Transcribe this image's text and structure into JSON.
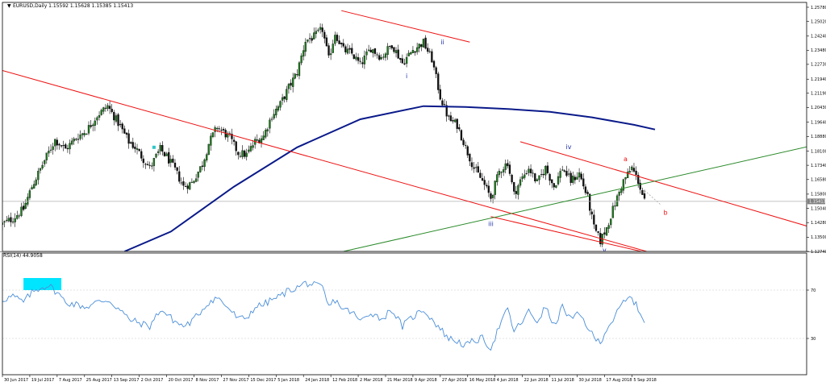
{
  "chart_data": [
    {
      "type": "candlestick",
      "title": "EURUSD,Daily  1.15592 1.15628 1.15385 1.15413",
      "symbol_marker": "▼",
      "y_ticks": [
        "1.25780",
        "1.25020",
        "1.24240",
        "1.23480",
        "1.22730",
        "1.21940",
        "1.21190",
        "1.20430",
        "1.19640",
        "1.18880",
        "1.18100",
        "1.17340",
        "1.16580",
        "1.15800",
        "1.15040",
        "1.14280",
        "1.13500",
        "1.12740"
      ],
      "ylim": [
        1.1274,
        1.2578
      ],
      "current_price": "1.15413",
      "current_price_value": 1.15413,
      "x_ticks": [
        "30 Jun 2017",
        "19 Jul 2017",
        "7 Aug 2017",
        "25 Aug 2017",
        "13 Sep 2017",
        "2 Oct 2017",
        "20 Oct 2017",
        "8 Nov 2017",
        "27 Nov 2017",
        "15 Dec 2017",
        "5 Jan 2018",
        "24 Jan 2018",
        "12 Feb 2018",
        "2 Mar 2018",
        "21 Mar 2018",
        "9 Apr 2018",
        "27 Apr 2018",
        "16 May 2018",
        "4 Jun 2018",
        "22 Jun 2018",
        "11 Jul 2018",
        "30 Jul 2018",
        "17 Aug 2018",
        "5 Sep 2018"
      ],
      "x_tick_index": [
        0,
        13,
        26,
        39,
        52,
        65,
        78,
        91,
        104,
        117,
        130,
        143,
        156,
        169,
        182,
        195,
        208,
        221,
        234,
        247,
        260,
        273,
        286,
        299
      ],
      "candle_count": 306,
      "price_path": [
        [
          0,
          1.142
        ],
        [
          5,
          1.145
        ],
        [
          10,
          1.15
        ],
        [
          14,
          1.162
        ],
        [
          20,
          1.176
        ],
        [
          25,
          1.187
        ],
        [
          30,
          1.182
        ],
        [
          35,
          1.188
        ],
        [
          40,
          1.192
        ],
        [
          45,
          1.2
        ],
        [
          50,
          1.205
        ],
        [
          55,
          1.196
        ],
        [
          60,
          1.186
        ],
        [
          63,
          1.183
        ],
        [
          70,
          1.172
        ],
        [
          75,
          1.182
        ],
        [
          78,
          1.178
        ],
        [
          82,
          1.171
        ],
        [
          86,
          1.162
        ],
        [
          90,
          1.164
        ],
        [
          95,
          1.174
        ],
        [
          98,
          1.185
        ],
        [
          102,
          1.194
        ],
        [
          108,
          1.188
        ],
        [
          112,
          1.18
        ],
        [
          116,
          1.179
        ],
        [
          120,
          1.186
        ],
        [
          124,
          1.189
        ],
        [
          128,
          1.2
        ],
        [
          132,
          1.206
        ],
        [
          136,
          1.215
        ],
        [
          140,
          1.223
        ],
        [
          144,
          1.24
        ],
        [
          148,
          1.242
        ],
        [
          152,
          1.246
        ],
        [
          155,
          1.23
        ],
        [
          158,
          1.244
        ],
        [
          162,
          1.235
        ],
        [
          166,
          1.233
        ],
        [
          170,
          1.227
        ],
        [
          175,
          1.236
        ],
        [
          180,
          1.231
        ],
        [
          185,
          1.238
        ],
        [
          190,
          1.228
        ],
        [
          195,
          1.235
        ],
        [
          200,
          1.239
        ],
        [
          204,
          1.23
        ],
        [
          208,
          1.21
        ],
        [
          212,
          1.198
        ],
        [
          216,
          1.195
        ],
        [
          220,
          1.183
        ],
        [
          224,
          1.172
        ],
        [
          228,
          1.165
        ],
        [
          232,
          1.156
        ],
        [
          236,
          1.17
        ],
        [
          240,
          1.175
        ],
        [
          243,
          1.158
        ],
        [
          246,
          1.165
        ],
        [
          250,
          1.172
        ],
        [
          254,
          1.164
        ],
        [
          258,
          1.172
        ],
        [
          262,
          1.162
        ],
        [
          266,
          1.172
        ],
        [
          270,
          1.165
        ],
        [
          274,
          1.169
        ],
        [
          278,
          1.156
        ],
        [
          281,
          1.14
        ],
        [
          284,
          1.133
        ],
        [
          287,
          1.14
        ],
        [
          291,
          1.153
        ],
        [
          295,
          1.165
        ],
        [
          299,
          1.172
        ],
        [
          302,
          1.165
        ],
        [
          305,
          1.1541
        ]
      ],
      "series": [
        {
          "name": "",
          "type": "line",
          "color": "#0a1a8a",
          "points": [
            [
              58,
              1.1274
            ],
            [
              80,
              1.138
            ],
            [
              110,
              1.162
            ],
            [
              140,
              1.183
            ],
            [
              170,
              1.198
            ],
            [
              200,
              1.205
            ],
            [
              220,
              1.2045
            ],
            [
              240,
              1.2035
            ],
            [
              260,
              1.202
            ],
            [
              280,
              1.199
            ],
            [
              300,
              1.195
            ],
            [
              310,
              1.1925
            ]
          ]
        }
      ],
      "trendlines": [
        {
          "color": "#ee1111",
          "points": [
            [
              0,
              1.224
            ],
            [
              306,
              1.1274
            ]
          ]
        },
        {
          "color": "#ee1111",
          "points": [
            [
              161,
              1.256
            ],
            [
              222,
              1.2392
            ]
          ]
        },
        {
          "color": "#ee1111",
          "points": [
            [
              246,
              1.186
            ],
            [
              385,
              1.14
            ]
          ]
        },
        {
          "color": "#ee1111",
          "points": [
            [
              232,
              1.146
            ],
            [
              305,
              1.127
            ]
          ]
        },
        {
          "color": "#2a8a2a",
          "points": [
            [
              162,
              1.1274
            ],
            [
              385,
              1.184
            ]
          ]
        }
      ],
      "annotations": [
        {
          "text": "i",
          "x": 192,
          "y": 1.22,
          "color": "#2233aa"
        },
        {
          "text": "ii",
          "x": 209,
          "y": 1.238,
          "color": "#2233aa"
        },
        {
          "text": "iii",
          "x": 232,
          "y": 1.141,
          "color": "#2233aa"
        },
        {
          "text": "iv",
          "x": 269,
          "y": 1.182,
          "color": "#2233aa"
        },
        {
          "text": "v",
          "x": 286,
          "y": 1.127,
          "color": "#2233aa"
        },
        {
          "text": "a",
          "x": 296,
          "y": 1.1755,
          "color": "#ee1111"
        },
        {
          "text": "b",
          "x": 315,
          "y": 1.147,
          "color": "#ee1111"
        }
      ]
    },
    {
      "type": "line",
      "title": "RSI(14) 44.9058",
      "y_ticks": [
        "70",
        "30"
      ],
      "y_tick_values": [
        70,
        30
      ],
      "ylim": [
        0,
        100
      ],
      "grid_levels": [
        70,
        30
      ],
      "series": [
        {
          "name": "",
          "color": "#4a8ed8",
          "points": [
            [
              0,
              62
            ],
            [
              5,
              65
            ],
            [
              10,
              60
            ],
            [
              14,
              68
            ],
            [
              18,
              72
            ],
            [
              22,
              74
            ],
            [
              26,
              68
            ],
            [
              30,
              60
            ],
            [
              35,
              58
            ],
            [
              40,
              56
            ],
            [
              45,
              60
            ],
            [
              50,
              62
            ],
            [
              55,
              55
            ],
            [
              60,
              46
            ],
            [
              63,
              44
            ],
            [
              70,
              40
            ],
            [
              75,
              54
            ],
            [
              78,
              50
            ],
            [
              82,
              44
            ],
            [
              86,
              40
            ],
            [
              90,
              44
            ],
            [
              95,
              54
            ],
            [
              98,
              60
            ],
            [
              102,
              64
            ],
            [
              108,
              54
            ],
            [
              112,
              46
            ],
            [
              116,
              47
            ],
            [
              120,
              56
            ],
            [
              124,
              58
            ],
            [
              128,
              62
            ],
            [
              132,
              65
            ],
            [
              136,
              70
            ],
            [
              140,
              72
            ],
            [
              144,
              76
            ],
            [
              148,
              74
            ],
            [
              152,
              72
            ],
            [
              155,
              56
            ],
            [
              158,
              62
            ],
            [
              162,
              54
            ],
            [
              166,
              52
            ],
            [
              170,
              44
            ],
            [
              175,
              52
            ],
            [
              180,
              46
            ],
            [
              185,
              54
            ],
            [
              190,
              40
            ],
            [
              195,
              48
            ],
            [
              200,
              54
            ],
            [
              204,
              46
            ],
            [
              208,
              38
            ],
            [
              212,
              30
            ],
            [
              216,
              28
            ],
            [
              220,
              24
            ],
            [
              224,
              28
            ],
            [
              228,
              30
            ],
            [
              232,
              22
            ],
            [
              236,
              40
            ],
            [
              240,
              54
            ],
            [
              243,
              36
            ],
            [
              246,
              42
            ],
            [
              250,
              52
            ],
            [
              254,
              44
            ],
            [
              258,
              56
            ],
            [
              262,
              40
            ],
            [
              266,
              56
            ],
            [
              270,
              46
            ],
            [
              274,
              50
            ],
            [
              278,
              40
            ],
            [
              281,
              30
            ],
            [
              284,
              27
            ],
            [
              287,
              38
            ],
            [
              291,
              48
            ],
            [
              295,
              60
            ],
            [
              299,
              64
            ],
            [
              302,
              54
            ],
            [
              305,
              45
            ]
          ]
        }
      ],
      "highlight_color": "#00e5ff"
    }
  ]
}
